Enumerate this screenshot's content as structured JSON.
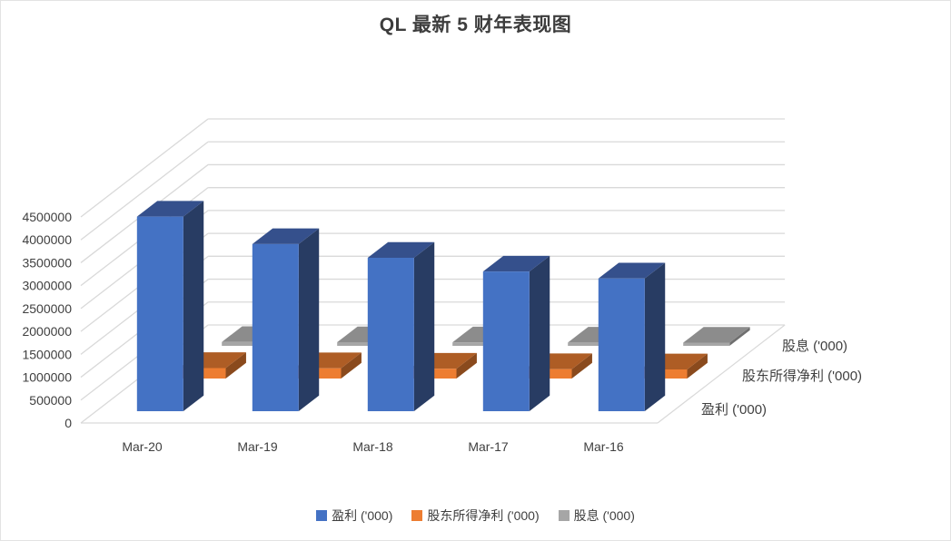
{
  "chart_data": {
    "type": "bar",
    "subtype": "3d-column",
    "title": "QL 最新 5 财年表现图",
    "categories": [
      "Mar-20",
      "Mar-19",
      "Mar-18",
      "Mar-17",
      "Mar-16"
    ],
    "series": [
      {
        "name": "盈利 ('000)",
        "values": [
          4250000,
          3650000,
          3350000,
          3050000,
          2900000
        ],
        "color": "#4472C4",
        "color_top": "#35508C",
        "color_side": "#283C63"
      },
      {
        "name": "股东所得净利 ('000)",
        "values": [
          230000,
          225000,
          215000,
          205000,
          200000
        ],
        "color": "#ED7D31",
        "color_top": "#AE5D25",
        "color_side": "#8A4A1D"
      },
      {
        "name": "股息 ('000)",
        "values": [
          85000,
          80000,
          78000,
          73000,
          70000
        ],
        "color": "#A6A6A6",
        "color_top": "#8C8C8C",
        "color_side": "#6F6F6F"
      }
    ],
    "ylim": [
      0,
      4500000
    ],
    "ytick_step": 500000,
    "ytick_labels": [
      "0",
      "500000",
      "1000000",
      "1500000",
      "2000000",
      "2500000",
      "3000000",
      "3500000",
      "4000000",
      "4500000"
    ],
    "series_axis_labels_top_to_bottom": [
      "股息 ('000)",
      "股东所得净利 ('000)",
      "盈利 ('000)"
    ],
    "legend": {
      "position": "bottom",
      "entries": [
        "盈利 ('000)",
        "股东所得净利 ('000)",
        "股息 ('000)"
      ]
    },
    "grid": true,
    "colors": {
      "gridline": "#D9D9D9",
      "text": "#404040",
      "title_text": "#3D3D3D",
      "background": "#FFFFFF"
    }
  }
}
